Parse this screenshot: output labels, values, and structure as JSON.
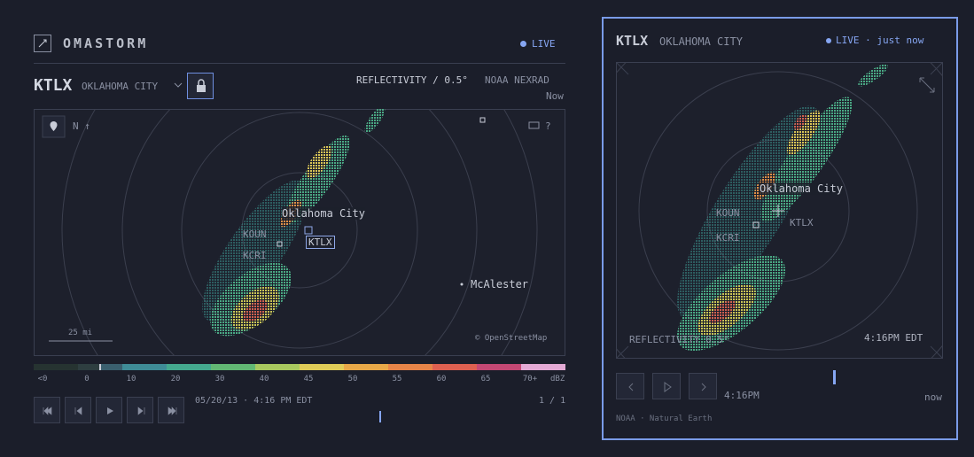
{
  "app": {
    "name": "OMASTORM",
    "status": "LIVE"
  },
  "station": {
    "id": "KTLX",
    "city": "OKLAHOMA CITY"
  },
  "product": {
    "name": "REFLECTIVITY / 0.5°",
    "source": "NOAA NEXRAD",
    "time": "Now"
  },
  "map": {
    "north": "N ↑",
    "help": "?",
    "places": [
      "Oklahoma City",
      "KOUN",
      "KTLX",
      "KCRI",
      "McAlester"
    ],
    "scale": "25 mi",
    "attribution": "© OpenStreetMap"
  },
  "legend": {
    "labels": [
      "<0",
      "0",
      "10",
      "20",
      "30",
      "40",
      "45",
      "50",
      "55",
      "60",
      "65",
      "70+"
    ],
    "unit": "dBZ"
  },
  "timeline": {
    "timestamp": "05/20/13 · 4:16 PM EDT",
    "frame": "1 / 1"
  },
  "widget": {
    "station": "KTLX",
    "city": "OKLAHOMA CITY",
    "status": "LIVE",
    "updated": "· just now",
    "places": [
      "Oklahoma City",
      "KOUN",
      "KTLX",
      "KCRI"
    ],
    "product": "REFLECTIVITY 0.5°",
    "time": "4:16PM EDT",
    "frame_time": "4:16PM",
    "end": "now",
    "credits": "NOAA · Natural Earth"
  }
}
